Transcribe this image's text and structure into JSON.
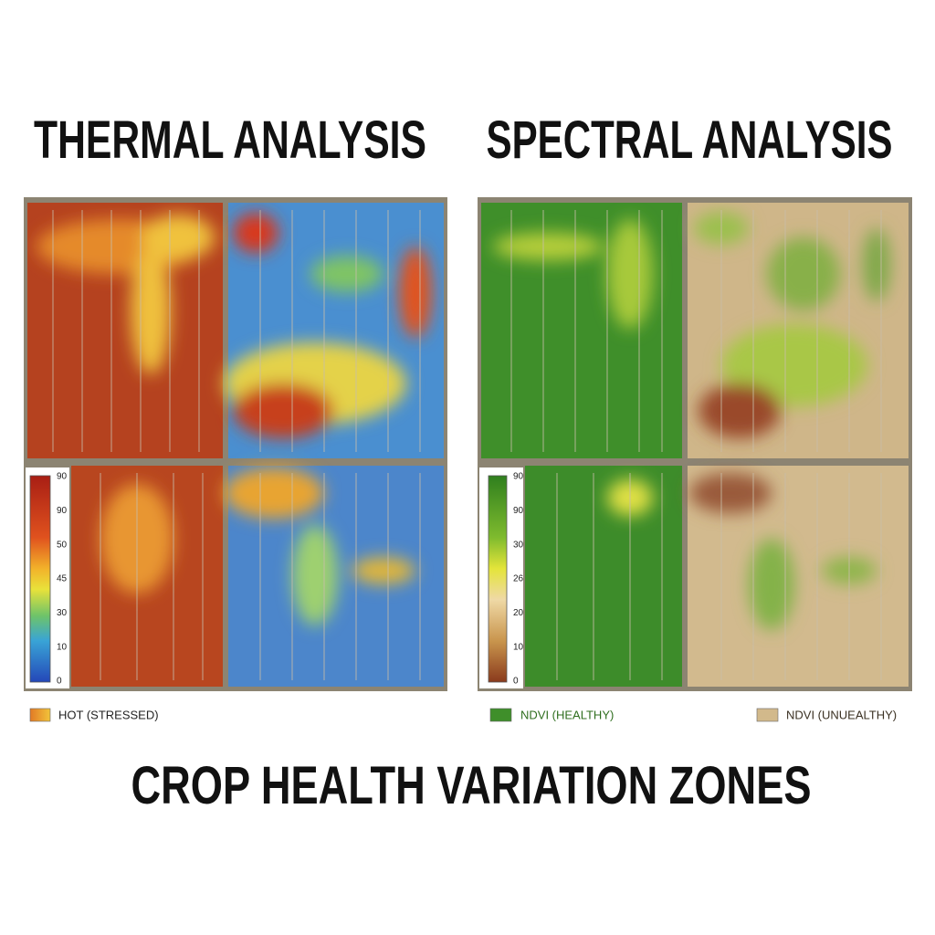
{
  "header": {
    "left_title": "THERMAL ANALYSIS",
    "right_title": "SPECTRAL ANALYSIS"
  },
  "thermal": {
    "scale_labels": [
      "90",
      "90",
      "50",
      "45",
      "30",
      "10",
      "0"
    ],
    "legend": "HOT (STRESSED)"
  },
  "spectral": {
    "scale_labels": [
      "90",
      "90",
      "30",
      "26",
      "20",
      "10",
      "0"
    ],
    "legend_healthy": "NDVI (HEALTHY)",
    "legend_unhealthy": "NDVI (UNUEALTHY)"
  },
  "footer": {
    "title": "CROP HEALTH VARIATION ZONES"
  }
}
